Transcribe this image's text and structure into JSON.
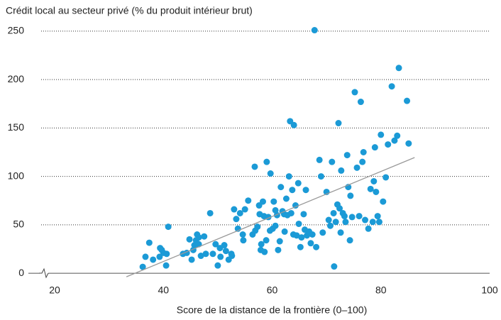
{
  "chart_data": {
    "type": "scatter",
    "title": "Crédit local au secteur privé (% du produit intérieur brut)",
    "x_label": "Score de la distance de la frontière (0–100)",
    "color": "#1b9ad6",
    "x": [
      36.2,
      36.7,
      37.4,
      38.1,
      39.3,
      39.7,
      40,
      40.6,
      40.5,
      40.9,
      39.4,
      43.6,
      44.3,
      44.8,
      45.2,
      45.5,
      45.7,
      46,
      46.2,
      46.5,
      46.9,
      47.5,
      47.8,
      46.5,
      48.6,
      49.1,
      49.6,
      50,
      50.4,
      50.5,
      51.2,
      51.5,
      52,
      52.5,
      52.6,
      53,
      53.4,
      53.7,
      54.1,
      54.6,
      54.7,
      55,
      55.6,
      56.4,
      56.8,
      56.9,
      57.3,
      57.6,
      57.7,
      57.9,
      58,
      58.3,
      58.5,
      58.6,
      58.9,
      59,
      59.3,
      59.6,
      59.7,
      60.1,
      60.3,
      60.6,
      60.6,
      60.9,
      61.1,
      61.4,
      61.6,
      61.9,
      62.2,
      62.3,
      62.6,
      62.8,
      63.1,
      63.3,
      63.5,
      63.7,
      63.9,
      64,
      64.3,
      64.5,
      64.8,
      64.9,
      65.2,
      65.4,
      65.8,
      66,
      66.2,
      66.4,
      66.8,
      67.1,
      67.4,
      67.8,
      68.1,
      68.7,
      69,
      69.3,
      70,
      70.4,
      70.7,
      71,
      71.3,
      71.4,
      71.7,
      72,
      72.2,
      72.4,
      72.6,
      72.7,
      73,
      73.3,
      73.5,
      73.8,
      74,
      74.3,
      74.4,
      74.7,
      75.2,
      75.6,
      76,
      76.3,
      76.6,
      76.8,
      77.1,
      77.7,
      78.1,
      78.5,
      78.7,
      78.9,
      79.1,
      79.4,
      79.7,
      80,
      80.4,
      80.9,
      81.3,
      82,
      82.5,
      83,
      83.3,
      84.8,
      85.1
    ],
    "values": [
      6.6,
      17,
      31.5,
      14,
      17,
      24,
      21,
      20,
      8,
      48,
      26,
      20,
      21,
      35,
      14,
      24,
      29,
      34,
      40,
      37,
      18,
      38,
      20,
      30,
      62,
      20,
      30,
      8,
      26,
      17,
      29,
      23,
      14,
      20,
      18,
      66,
      56,
      46,
      62,
      40,
      34,
      66,
      75,
      40,
      110,
      44,
      48,
      70,
      61,
      24,
      30,
      74,
      59,
      22,
      34,
      115,
      58,
      44,
      103,
      46,
      74,
      65,
      49,
      60,
      24,
      33,
      89,
      64,
      61,
      43,
      77,
      60,
      100,
      157,
      62,
      86,
      40,
      153,
      70,
      39,
      93,
      51,
      27,
      37,
      61,
      45,
      86,
      39,
      43,
      31,
      40,
      251,
      27,
      117,
      100,
      42,
      84,
      55,
      49,
      115,
      62,
      7,
      53,
      71,
      155,
      67,
      42,
      106,
      62,
      59,
      53,
      122,
      89,
      34,
      80,
      58,
      187,
      109,
      59,
      177,
      115,
      125,
      55,
      46,
      87,
      53,
      95,
      130,
      84,
      59,
      53,
      143,
      74,
      99,
      133,
      193,
      137,
      142,
      212,
      178,
      134
    ],
    "trend_line": {
      "x": [
        33.2,
        86.2
      ],
      "y": [
        -3.7,
        119.5
      ]
    },
    "xlim": [
      17.5,
      100
    ],
    "ylim": [
      -8,
      258
    ],
    "xticks": [
      20,
      40,
      60,
      80,
      100
    ],
    "yticks": [
      0,
      50,
      100,
      150,
      200,
      250
    ],
    "grid": true
  }
}
